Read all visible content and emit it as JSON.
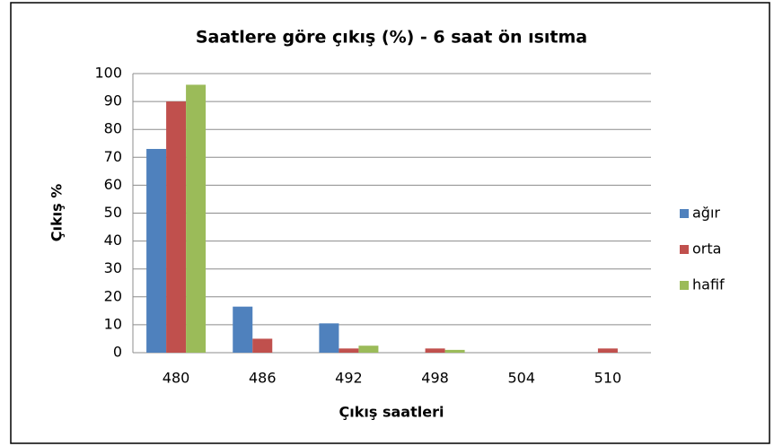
{
  "chart_data": {
    "type": "bar",
    "title": "Saatlere göre çıkış (%) - 6 saat ön ısıtma",
    "x_label": "Çıkış saatleri",
    "y_label": "Çıkış %",
    "categories": [
      "480",
      "486",
      "492",
      "498",
      "504",
      "510"
    ],
    "series": [
      {
        "name": "ağır",
        "color": "#4f81bd",
        "values": [
          73,
          16.5,
          10.5,
          0,
          0,
          0
        ]
      },
      {
        "name": "orta",
        "color": "#c0504d",
        "values": [
          90,
          5,
          1.5,
          1.5,
          0,
          1.5
        ]
      },
      {
        "name": "hafif",
        "color": "#9bbb59",
        "values": [
          96,
          0,
          2.5,
          1,
          0,
          0
        ]
      }
    ],
    "ylim": [
      0,
      100
    ],
    "yticks": [
      0,
      10,
      20,
      30,
      40,
      50,
      60,
      70,
      80,
      90,
      100
    ],
    "grid": true,
    "legend": "right"
  }
}
